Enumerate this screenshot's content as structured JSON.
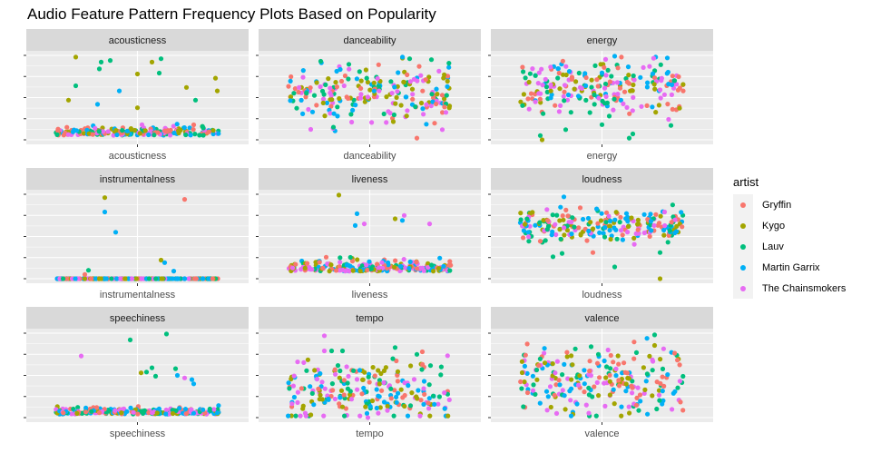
{
  "chart_data": {
    "type": "scatter",
    "title": "Audio Feature Pattern Frequency Plots Based on Popularity",
    "facet_layout": "3x3 grid, free y scales",
    "y_tick_labels_shown": false,
    "y_scale_note": "values normalized 0-1 within each panel (no y tick labels rendered)",
    "x_jitter_range": [
      -0.5,
      0.5
    ],
    "grid": true,
    "legend": {
      "title": "artist",
      "position": "right",
      "entries": [
        {
          "name": "Gryffin",
          "color": "#F8766D"
        },
        {
          "name": "Kygo",
          "color": "#A3A500"
        },
        {
          "name": "Lauv",
          "color": "#00BF7D"
        },
        {
          "name": "Martin Garrix",
          "color": "#00B0F6"
        },
        {
          "name": "The Chainsmokers",
          "color": "#E76BF3"
        }
      ]
    },
    "panels": [
      {
        "name": "acousticness",
        "xlabel": "acousticness",
        "distribution": {
          "center": 0.08,
          "spread": 0.09,
          "skew": "low",
          "count": 200
        },
        "outliers": [
          [
            -0.34,
            0.98,
            "Kygo"
          ],
          [
            -0.2,
            0.92,
            "Lauv"
          ],
          [
            -0.15,
            0.94,
            "Lauv"
          ],
          [
            0.08,
            0.92,
            "Kygo"
          ],
          [
            0.13,
            0.96,
            "Lauv"
          ],
          [
            -0.21,
            0.84,
            "Lauv"
          ],
          [
            0.12,
            0.79,
            "Lauv"
          ],
          [
            0.0,
            0.78,
            "Kygo"
          ],
          [
            0.43,
            0.73,
            "Kygo"
          ],
          [
            -0.34,
            0.64,
            "Lauv"
          ],
          [
            0.27,
            0.62,
            "Kygo"
          ],
          [
            -0.1,
            0.58,
            "Martin Garrix"
          ],
          [
            0.44,
            0.58,
            "Kygo"
          ],
          [
            -0.38,
            0.47,
            "Kygo"
          ],
          [
            -0.22,
            0.42,
            "Martin Garrix"
          ],
          [
            0.0,
            0.38,
            "Kygo"
          ],
          [
            0.32,
            0.47,
            "Lauv"
          ]
        ]
      },
      {
        "name": "danceability",
        "xlabel": "danceability",
        "distribution": {
          "center": 0.55,
          "spread": 0.17,
          "skew": "none",
          "count": 220
        },
        "outliers": [
          [
            -0.27,
            0.93,
            "Lauv"
          ],
          [
            0.22,
            0.96,
            "Lauv"
          ],
          [
            0.34,
            0.95,
            "Lauv"
          ],
          [
            -0.2,
            0.15,
            "Lauv"
          ],
          [
            0.26,
            0.02,
            "Gryffin"
          ],
          [
            0.4,
            0.12,
            "The Chainsmokers"
          ]
        ]
      },
      {
        "name": "energy",
        "xlabel": "energy",
        "distribution": {
          "center": 0.62,
          "spread": 0.17,
          "skew": "none",
          "count": 220
        },
        "outliers": [
          [
            -0.33,
            0.0,
            "Kygo"
          ],
          [
            -0.34,
            0.05,
            "Lauv"
          ],
          [
            0.15,
            0.02,
            "Lauv"
          ],
          [
            -0.2,
            0.12,
            "Lauv"
          ],
          [
            0.0,
            0.18,
            "Lauv"
          ],
          [
            0.17,
            0.07,
            "Lauv"
          ],
          [
            0.38,
            0.17,
            "Lauv"
          ],
          [
            0.07,
            0.99,
            "Martin Garrix"
          ],
          [
            0.36,
            0.97,
            "Martin Garrix"
          ]
        ]
      },
      {
        "name": "instrumentalness",
        "xlabel": "instrumentalness",
        "distribution": {
          "center": 0.0,
          "spread": 0.005,
          "skew": "low",
          "count": 210
        },
        "outliers": [
          [
            -0.18,
            0.96,
            "Kygo"
          ],
          [
            0.26,
            0.94,
            "Gryffin"
          ],
          [
            -0.18,
            0.79,
            "Martin Garrix"
          ],
          [
            -0.12,
            0.55,
            "Martin Garrix"
          ],
          [
            0.13,
            0.22,
            "Kygo"
          ],
          [
            0.15,
            0.19,
            "Martin Garrix"
          ],
          [
            -0.27,
            0.1,
            "Lauv"
          ],
          [
            0.2,
            0.09,
            "Martin Garrix"
          ],
          [
            -0.29,
            0.05,
            "Gryffin"
          ]
        ]
      },
      {
        "name": "liveness",
        "xlabel": "liveness",
        "distribution": {
          "center": 0.12,
          "spread": 0.1,
          "skew": "low",
          "count": 220
        },
        "outliers": [
          [
            -0.17,
            0.99,
            "Kygo"
          ],
          [
            -0.07,
            0.77,
            "Martin Garrix"
          ],
          [
            0.14,
            0.71,
            "Kygo"
          ],
          [
            0.19,
            0.75,
            "The Chainsmokers"
          ],
          [
            0.18,
            0.69,
            "Martin Garrix"
          ],
          [
            0.33,
            0.65,
            "The Chainsmokers"
          ],
          [
            -0.03,
            0.65,
            "The Chainsmokers"
          ],
          [
            -0.08,
            0.63,
            "Martin Garrix"
          ]
        ]
      },
      {
        "name": "loudness",
        "xlabel": "loudness",
        "distribution": {
          "center": 0.63,
          "spread": 0.09,
          "skew": "none",
          "count": 220
        },
        "outliers": [
          [
            -0.21,
            0.97,
            "Martin Garrix"
          ],
          [
            -0.12,
            0.84,
            "Gryffin"
          ],
          [
            -0.27,
            0.26,
            "Lauv"
          ],
          [
            -0.22,
            0.3,
            "Lauv"
          ],
          [
            0.07,
            0.14,
            "Lauv"
          ],
          [
            0.32,
            0.31,
            "Lauv"
          ],
          [
            0.32,
            0.0,
            "Kygo"
          ],
          [
            -0.05,
            0.31,
            "Gryffin"
          ]
        ]
      },
      {
        "name": "speechiness",
        "xlabel": "speechiness",
        "distribution": {
          "center": 0.06,
          "spread": 0.06,
          "skew": "low",
          "count": 220
        },
        "outliers": [
          [
            0.16,
            0.99,
            "Lauv"
          ],
          [
            -0.04,
            0.92,
            "Lauv"
          ],
          [
            -0.31,
            0.73,
            "The Chainsmokers"
          ],
          [
            0.08,
            0.59,
            "Lauv"
          ],
          [
            0.21,
            0.58,
            "Lauv"
          ],
          [
            0.02,
            0.53,
            "Kygo"
          ],
          [
            0.05,
            0.54,
            "Lauv"
          ],
          [
            0.1,
            0.49,
            "Lauv"
          ],
          [
            0.22,
            0.5,
            "Martin Garrix"
          ],
          [
            0.3,
            0.45,
            "Martin Garrix"
          ],
          [
            0.26,
            0.47,
            "The Chainsmokers"
          ],
          [
            0.31,
            0.4,
            "Martin Garrix"
          ]
        ]
      },
      {
        "name": "tempo",
        "xlabel": "tempo",
        "distribution": {
          "center": 0.32,
          "spread": 0.18,
          "skew": "none",
          "count": 220
        },
        "outliers": [
          [
            -0.25,
            0.97,
            "The Chainsmokers"
          ],
          [
            -0.25,
            0.79,
            "The Chainsmokers"
          ],
          [
            -0.21,
            0.79,
            "Lauv"
          ],
          [
            -0.15,
            0.79,
            "Lauv"
          ],
          [
            0.14,
            0.83,
            "Lauv"
          ],
          [
            0.29,
            0.78,
            "Gryffin"
          ],
          [
            0.26,
            0.75,
            "Lauv"
          ],
          [
            -0.01,
            0.0,
            "The Chainsmokers"
          ]
        ]
      },
      {
        "name": "valence",
        "xlabel": "valence",
        "distribution": {
          "center": 0.45,
          "spread": 0.2,
          "skew": "none",
          "count": 220
        },
        "outliers": [
          [
            0.29,
            0.98,
            "Lauv"
          ],
          [
            -0.06,
            0.84,
            "Lauv"
          ],
          [
            -0.02,
            0.75,
            "Lauv"
          ],
          [
            0.19,
            0.77,
            "Lauv"
          ],
          [
            -0.25,
            0.05,
            "The Chainsmokers"
          ],
          [
            -0.16,
            0.04,
            "Kygo"
          ],
          [
            -0.17,
            0.02,
            "Martin Garrix"
          ]
        ]
      }
    ]
  }
}
